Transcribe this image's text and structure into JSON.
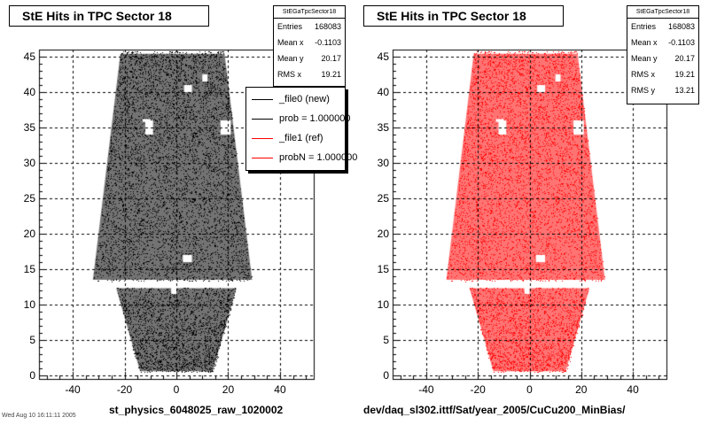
{
  "chart_data": [
    {
      "type": "scatter",
      "title": "StE Hits in TPC Sector 18",
      "xlabel": "st_physics_6048025_raw_1020002",
      "ylabel": "",
      "xlim": [
        -53,
        53
      ],
      "ylim": [
        -0.5,
        46
      ],
      "x_ticks": [
        -40,
        -20,
        0,
        20,
        40
      ],
      "y_ticks": [
        0,
        5,
        10,
        15,
        20,
        25,
        30,
        35,
        40,
        45
      ],
      "grid": true,
      "color": "#000000",
      "stats": {
        "title": "StEGaTpcSector18",
        "rows": [
          {
            "label": "Entries",
            "value": "168083"
          },
          {
            "label": "Mean x",
            "value": "-0.1103"
          },
          {
            "label": "Mean y",
            "value": "20.17"
          },
          {
            "label": "RMS x",
            "value": "19.21"
          }
        ]
      },
      "legend": {
        "placement": "top-right",
        "entries": [
          {
            "label": "_file0 (new)",
            "color": "#000000"
          },
          {
            "label": "prob = 1.000000",
            "color": "#000000"
          },
          {
            "label": "_file1 (ref)",
            "color": "#ff0000"
          },
          {
            "label": "probN = 1.000000",
            "color": "#ff0000"
          }
        ]
      }
    },
    {
      "type": "scatter",
      "title": "StE Hits in TPC Sector 18",
      "xlabel": "dev/daq_sl302.ittf/Sat/year_2005/CuCu200_MinBias/",
      "ylabel": "",
      "xlim": [
        -53,
        53
      ],
      "ylim": [
        -0.5,
        46
      ],
      "x_ticks": [
        -40,
        -20,
        0,
        20,
        40
      ],
      "y_ticks": [
        0,
        5,
        10,
        15,
        20,
        25,
        30,
        35,
        40,
        45
      ],
      "grid": true,
      "color": "#ff0000",
      "stats": {
        "title": "StEGaTpcSector18",
        "rows": [
          {
            "label": "Entries",
            "value": "168083"
          },
          {
            "label": "Mean x",
            "value": "-0.1103"
          },
          {
            "label": "Mean y",
            "value": "20.17"
          },
          {
            "label": "RMS x",
            "value": "19.21"
          },
          {
            "label": "RMS y",
            "value": "13.21"
          }
        ]
      }
    }
  ],
  "footer_text": "Wed Aug 10 16:11:11 2005"
}
